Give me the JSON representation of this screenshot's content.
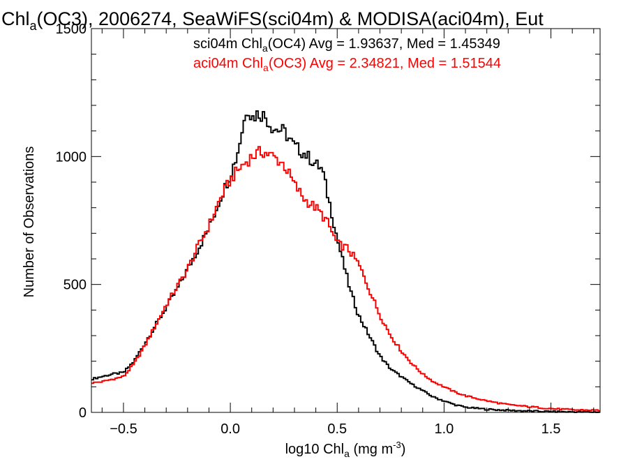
{
  "chart_data": {
    "type": "line",
    "title": {
      "pre": "Chl",
      "sub": "a",
      "post": "(OC3), 2006274, SeaWiFS(sci04m) & MODISA(aci04m), Eut"
    },
    "xlabel": {
      "pre": "log10 Chl",
      "sub": "a",
      "mid": " (mg m",
      "sup": "-3",
      "post": ")"
    },
    "ylabel": "Number of Observations",
    "xlim": [
      -0.65,
      1.73
    ],
    "ylim": [
      0,
      1500
    ],
    "x_ticks": [
      -0.5,
      0.0,
      0.5,
      1.0,
      1.5
    ],
    "x_tick_labels": [
      "−0.5",
      "0.0",
      "0.5",
      "1.0",
      "1.5"
    ],
    "y_ticks": [
      0,
      500,
      1000,
      1500
    ],
    "y_tick_labels": [
      "0",
      "500",
      "1000",
      "1500"
    ],
    "step": 0.01,
    "grid": false,
    "series": [
      {
        "id": "sci04m",
        "color": "#000000",
        "legend": {
          "pre": "sci04m Chl",
          "sub": "a",
          "post": "(OC4) Avg = 1.93637, Med = 1.45349"
        },
        "points": [
          [
            -0.65,
            130
          ],
          [
            -0.6,
            140
          ],
          [
            -0.55,
            150
          ],
          [
            -0.5,
            155
          ],
          [
            -0.45,
            200
          ],
          [
            -0.4,
            270
          ],
          [
            -0.35,
            340
          ],
          [
            -0.3,
            410
          ],
          [
            -0.25,
            480
          ],
          [
            -0.2,
            560
          ],
          [
            -0.15,
            640
          ],
          [
            -0.1,
            720
          ],
          [
            -0.05,
            830
          ],
          [
            0.0,
            930
          ],
          [
            0.03,
            1000
          ],
          [
            0.06,
            1120
          ],
          [
            0.08,
            1200
          ],
          [
            0.1,
            1150
          ],
          [
            0.13,
            1170
          ],
          [
            0.16,
            1160
          ],
          [
            0.2,
            1110
          ],
          [
            0.25,
            1100
          ],
          [
            0.3,
            1040
          ],
          [
            0.35,
            1010
          ],
          [
            0.4,
            970
          ],
          [
            0.43,
            950
          ],
          [
            0.45,
            870
          ],
          [
            0.48,
            760
          ],
          [
            0.5,
            680
          ],
          [
            0.53,
            580
          ],
          [
            0.56,
            480
          ],
          [
            0.6,
            380
          ],
          [
            0.65,
            300
          ],
          [
            0.7,
            220
          ],
          [
            0.75,
            170
          ],
          [
            0.8,
            140
          ],
          [
            0.85,
            110
          ],
          [
            0.9,
            85
          ],
          [
            0.95,
            60
          ],
          [
            1.0,
            45
          ],
          [
            1.05,
            30
          ],
          [
            1.1,
            20
          ],
          [
            1.2,
            12
          ],
          [
            1.3,
            8
          ],
          [
            1.4,
            5
          ],
          [
            1.5,
            3
          ],
          [
            1.6,
            2
          ],
          [
            1.73,
            1
          ]
        ]
      },
      {
        "id": "aci04m",
        "color": "#ff0000",
        "legend": {
          "pre": "aci04m Chl",
          "sub": "a",
          "post": "(OC3) Avg = 2.34821, Med = 1.51544"
        },
        "points": [
          [
            -0.65,
            115
          ],
          [
            -0.6,
            120
          ],
          [
            -0.55,
            130
          ],
          [
            -0.5,
            140
          ],
          [
            -0.45,
            190
          ],
          [
            -0.4,
            260
          ],
          [
            -0.35,
            340
          ],
          [
            -0.3,
            420
          ],
          [
            -0.25,
            490
          ],
          [
            -0.2,
            560
          ],
          [
            -0.15,
            650
          ],
          [
            -0.1,
            730
          ],
          [
            -0.05,
            830
          ],
          [
            0.0,
            910
          ],
          [
            0.05,
            960
          ],
          [
            0.1,
            1000
          ],
          [
            0.15,
            1020
          ],
          [
            0.2,
            1000
          ],
          [
            0.25,
            970
          ],
          [
            0.3,
            890
          ],
          [
            0.35,
            830
          ],
          [
            0.4,
            800
          ],
          [
            0.45,
            750
          ],
          [
            0.5,
            660
          ],
          [
            0.55,
            640
          ],
          [
            0.6,
            580
          ],
          [
            0.65,
            480
          ],
          [
            0.7,
            380
          ],
          [
            0.75,
            300
          ],
          [
            0.8,
            240
          ],
          [
            0.85,
            190
          ],
          [
            0.9,
            150
          ],
          [
            0.95,
            120
          ],
          [
            1.0,
            100
          ],
          [
            1.05,
            80
          ],
          [
            1.1,
            65
          ],
          [
            1.2,
            45
          ],
          [
            1.3,
            30
          ],
          [
            1.4,
            22
          ],
          [
            1.5,
            15
          ],
          [
            1.6,
            10
          ],
          [
            1.73,
            8
          ]
        ]
      }
    ]
  }
}
